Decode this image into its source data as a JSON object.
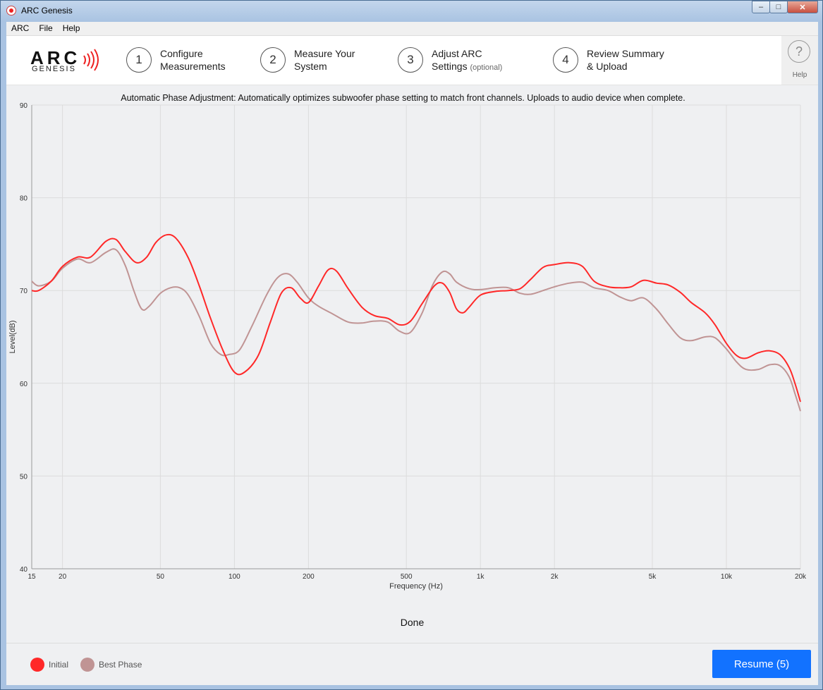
{
  "window": {
    "title": "ARC Genesis",
    "minimize": "‒",
    "maximize": "□",
    "close": "✕"
  },
  "menu": [
    "ARC",
    "File",
    "Help"
  ],
  "logo": {
    "arc": "ARC",
    "genesis": "GENESIS"
  },
  "steps": [
    {
      "num": "1",
      "line1": "Configure",
      "line2": "Measurements",
      "opt": ""
    },
    {
      "num": "2",
      "line1": "Measure Your",
      "line2": "System",
      "opt": ""
    },
    {
      "num": "3",
      "line1": "Adjust ARC",
      "line2": "Settings",
      "opt": "(optional)"
    },
    {
      "num": "4",
      "line1": "Review Summary",
      "line2": "& Upload",
      "opt": ""
    }
  ],
  "help": {
    "glyph": "?",
    "label": "Help"
  },
  "info": "Automatic Phase Adjustment: Automatically optimizes subwoofer phase setting to match front channels. Uploads to audio device when complete.",
  "status": "Done",
  "resume_label": "Resume (5)",
  "colors": {
    "initial": "#ff2828",
    "best_phase": "#c09494",
    "accent": "#1272ff"
  },
  "chart_data": {
    "type": "line",
    "title": "",
    "xlabel": "Frequency (Hz)",
    "ylabel": "Level(dB)",
    "xscale": "log",
    "xlim": [
      15,
      20000
    ],
    "ylim": [
      40,
      90
    ],
    "xticks": [
      15,
      20,
      50,
      100,
      200,
      500,
      1000,
      2000,
      5000,
      10000,
      20000
    ],
    "xtick_labels": [
      "15",
      "20",
      "50",
      "100",
      "200",
      "500",
      "1k",
      "2k",
      "5k",
      "10k",
      "20k"
    ],
    "yticks": [
      40,
      50,
      60,
      70,
      80,
      90
    ],
    "grid": true,
    "legend": "bottom-left",
    "series": [
      {
        "name": "Initial",
        "points": [
          [
            15,
            70
          ],
          [
            16,
            70
          ],
          [
            18,
            71
          ],
          [
            20,
            72.6
          ],
          [
            23,
            73.6
          ],
          [
            26,
            73.6
          ],
          [
            30,
            75.3
          ],
          [
            33,
            75.5
          ],
          [
            36,
            74.2
          ],
          [
            40,
            73
          ],
          [
            44,
            73.6
          ],
          [
            48,
            75.2
          ],
          [
            53,
            76
          ],
          [
            58,
            75.6
          ],
          [
            65,
            73.5
          ],
          [
            72,
            70.5
          ],
          [
            80,
            67
          ],
          [
            90,
            63.5
          ],
          [
            100,
            61.2
          ],
          [
            110,
            61.2
          ],
          [
            125,
            63
          ],
          [
            140,
            66.6
          ],
          [
            155,
            69.7
          ],
          [
            170,
            70.3
          ],
          [
            185,
            69.2
          ],
          [
            200,
            68.7
          ],
          [
            220,
            70.5
          ],
          [
            240,
            72.2
          ],
          [
            260,
            72.1
          ],
          [
            290,
            70.2
          ],
          [
            330,
            68.2
          ],
          [
            370,
            67.3
          ],
          [
            420,
            67
          ],
          [
            470,
            66.3
          ],
          [
            520,
            66.7
          ],
          [
            580,
            68.6
          ],
          [
            650,
            70.5
          ],
          [
            700,
            70.8
          ],
          [
            750,
            69.8
          ],
          [
            800,
            68
          ],
          [
            850,
            67.6
          ],
          [
            900,
            68.2
          ],
          [
            1000,
            69.5
          ],
          [
            1150,
            69.9
          ],
          [
            1300,
            70
          ],
          [
            1450,
            70.2
          ],
          [
            1600,
            71.2
          ],
          [
            1800,
            72.5
          ],
          [
            2000,
            72.8
          ],
          [
            2300,
            73
          ],
          [
            2600,
            72.6
          ],
          [
            2900,
            71
          ],
          [
            3300,
            70.4
          ],
          [
            3700,
            70.3
          ],
          [
            4100,
            70.4
          ],
          [
            4600,
            71.1
          ],
          [
            5200,
            70.8
          ],
          [
            5800,
            70.6
          ],
          [
            6500,
            69.8
          ],
          [
            7200,
            68.7
          ],
          [
            8200,
            67.6
          ],
          [
            9000,
            66.3
          ],
          [
            10000,
            64.3
          ],
          [
            11000,
            63
          ],
          [
            12000,
            62.7
          ],
          [
            13500,
            63.3
          ],
          [
            15000,
            63.5
          ],
          [
            16500,
            63.1
          ],
          [
            18000,
            61.7
          ],
          [
            19000,
            60
          ],
          [
            20000,
            58
          ]
        ]
      },
      {
        "name": "Best Phase",
        "points": [
          [
            15,
            71
          ],
          [
            16,
            70.5
          ],
          [
            18,
            71
          ],
          [
            20,
            72.4
          ],
          [
            23,
            73.4
          ],
          [
            26,
            73
          ],
          [
            30,
            74.1
          ],
          [
            33,
            74.4
          ],
          [
            36,
            72.7
          ],
          [
            39,
            70
          ],
          [
            42,
            68
          ],
          [
            45,
            68.3
          ],
          [
            50,
            69.7
          ],
          [
            55,
            70.3
          ],
          [
            60,
            70.3
          ],
          [
            65,
            69.5
          ],
          [
            72,
            67.2
          ],
          [
            80,
            64.3
          ],
          [
            88,
            63.1
          ],
          [
            95,
            63.1
          ],
          [
            105,
            63.6
          ],
          [
            118,
            66.2
          ],
          [
            135,
            69.5
          ],
          [
            150,
            71.4
          ],
          [
            165,
            71.8
          ],
          [
            180,
            70.9
          ],
          [
            200,
            69.2
          ],
          [
            220,
            68.3
          ],
          [
            250,
            67.5
          ],
          [
            290,
            66.6
          ],
          [
            330,
            66.5
          ],
          [
            370,
            66.7
          ],
          [
            420,
            66.6
          ],
          [
            470,
            65.6
          ],
          [
            520,
            65.5
          ],
          [
            580,
            67.6
          ],
          [
            640,
            70.6
          ],
          [
            700,
            72
          ],
          [
            750,
            71.8
          ],
          [
            800,
            70.9
          ],
          [
            900,
            70.2
          ],
          [
            1000,
            70.1
          ],
          [
            1150,
            70.3
          ],
          [
            1300,
            70.3
          ],
          [
            1450,
            69.7
          ],
          [
            1600,
            69.6
          ],
          [
            1800,
            70
          ],
          [
            2000,
            70.4
          ],
          [
            2300,
            70.8
          ],
          [
            2600,
            70.9
          ],
          [
            2900,
            70.3
          ],
          [
            3300,
            70
          ],
          [
            3700,
            69.3
          ],
          [
            4100,
            68.9
          ],
          [
            4600,
            69.2
          ],
          [
            5200,
            68
          ],
          [
            5800,
            66.4
          ],
          [
            6500,
            64.9
          ],
          [
            7200,
            64.6
          ],
          [
            8200,
            65
          ],
          [
            9000,
            64.9
          ],
          [
            10000,
            63.7
          ],
          [
            11000,
            62.3
          ],
          [
            12000,
            61.5
          ],
          [
            13500,
            61.5
          ],
          [
            15000,
            62
          ],
          [
            16500,
            61.9
          ],
          [
            18000,
            60.7
          ],
          [
            19000,
            58.9
          ],
          [
            20000,
            57
          ]
        ]
      }
    ]
  }
}
